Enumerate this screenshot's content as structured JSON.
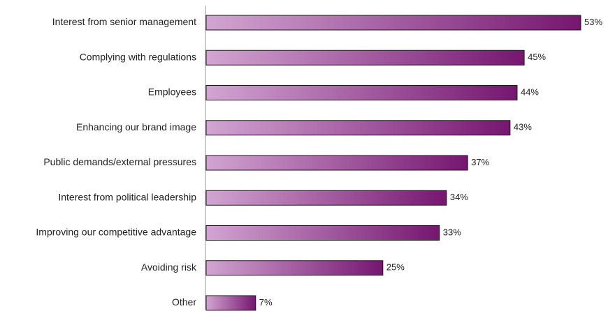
{
  "chart_data": {
    "type": "bar",
    "orientation": "horizontal",
    "categories": [
      "Interest from senior management",
      "Complying with regulations",
      "Employees",
      "Enhancing our brand image",
      "Public demands/external pressures",
      "Interest from political leadership",
      "Improving our competitive advantage",
      "Avoiding risk",
      "Other"
    ],
    "values": [
      53,
      45,
      44,
      43,
      37,
      34,
      33,
      25,
      7
    ],
    "value_labels": [
      "53%",
      "45%",
      "44%",
      "43%",
      "37%",
      "34%",
      "33%",
      "25%",
      "7%"
    ],
    "unit": "%",
    "xlim": [
      0,
      53
    ],
    "grid": false,
    "legend": "none",
    "colors": {
      "bar_gradient_start": "#d2a5d2",
      "bar_gradient_end": "#761670",
      "bar_outline": "#1a1a1a",
      "axis": "#999999",
      "text": "#222222"
    }
  }
}
